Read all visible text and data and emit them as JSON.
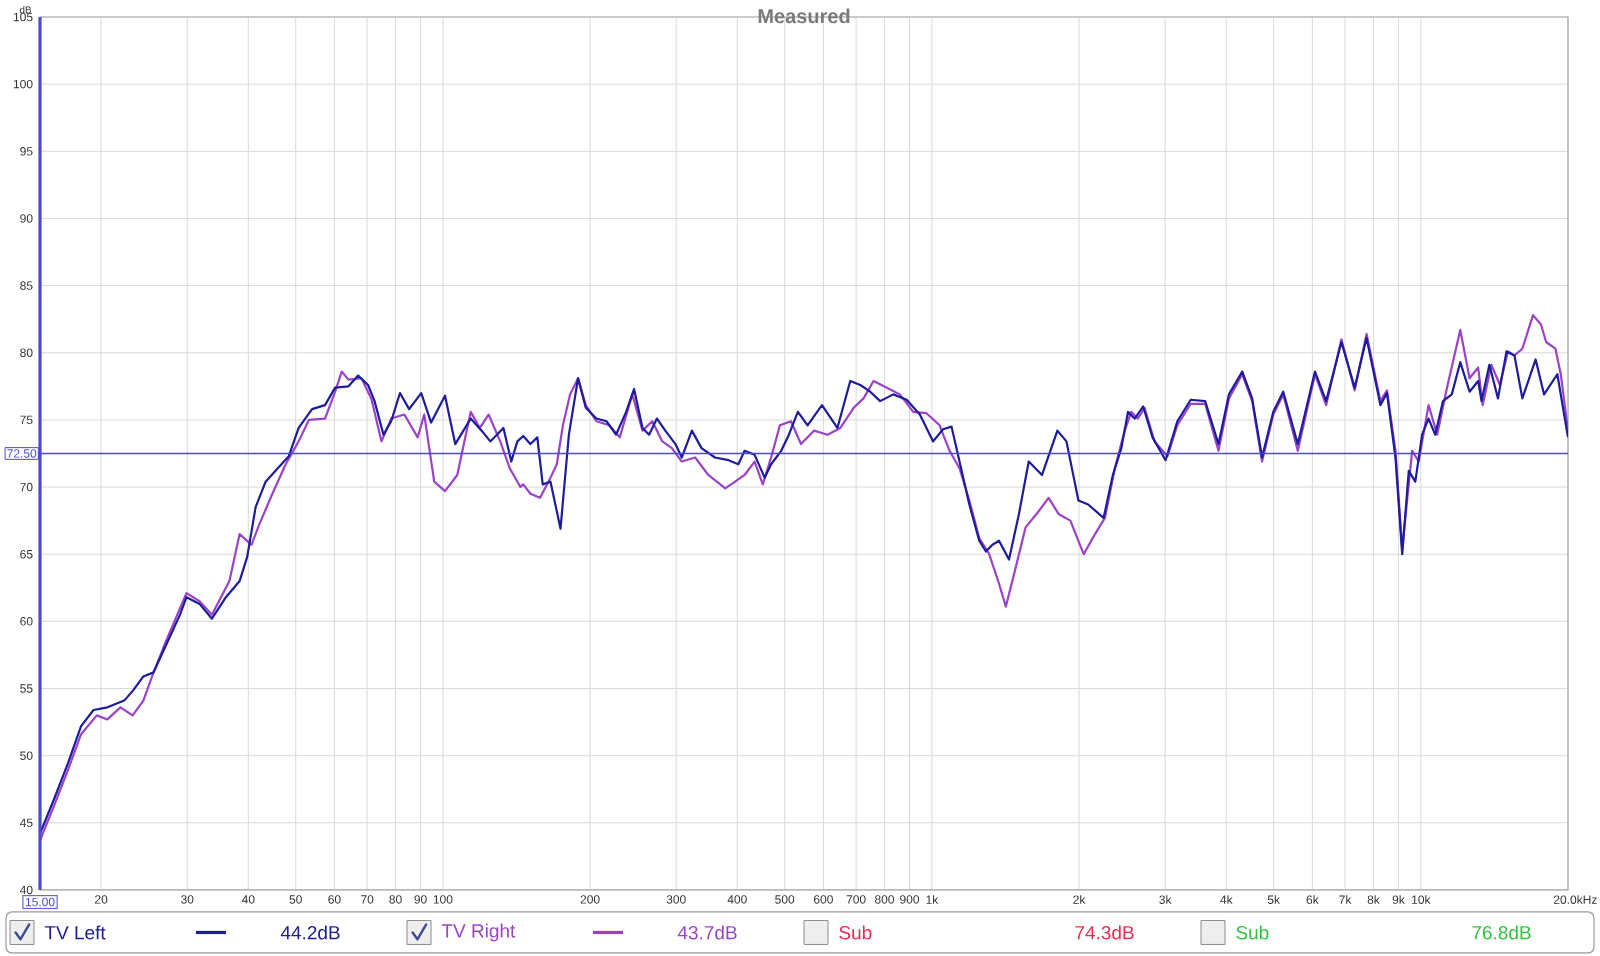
{
  "chart_data": {
    "type": "line",
    "title": "Measured",
    "xlabel": "Hz",
    "ylabel": "dB",
    "log": "x",
    "grid": true,
    "legend": "bottom",
    "xlim": [
      15,
      20000
    ],
    "ylim": [
      40,
      105
    ],
    "xticks": [
      {
        "value": 15,
        "label": "15.00"
      },
      20,
      30,
      40,
      50,
      60,
      70,
      80,
      90,
      100,
      200,
      300,
      400,
      500,
      600,
      700,
      800,
      900,
      {
        "value": 1000,
        "label": "1k"
      },
      {
        "value": 2000,
        "label": "2k"
      },
      {
        "value": 3000,
        "label": "3k"
      },
      {
        "value": 4000,
        "label": "4k"
      },
      {
        "value": 5000,
        "label": "5k"
      },
      {
        "value": 6000,
        "label": "6k"
      },
      {
        "value": 7000,
        "label": "7k"
      },
      {
        "value": 8000,
        "label": "8k"
      },
      {
        "value": 9000,
        "label": "9k"
      },
      {
        "value": 10000,
        "label": "10k"
      },
      {
        "value": 20000,
        "label": "20.0k"
      }
    ],
    "yticks": [
      40,
      45,
      50,
      55,
      60,
      65,
      70,
      75,
      80,
      85,
      90,
      95,
      100,
      105
    ],
    "series": [
      {
        "name": "TV Left",
        "color": "#1c1c9c",
        "x": [
          15,
          16.0,
          17.1,
          18.2,
          19.3,
          20.6,
          22.3,
          23.3,
          24.4,
          25.6,
          27.2,
          29.0,
          29.9,
          31.8,
          33.7,
          36.0,
          38.4,
          39.8,
          41.4,
          43.4,
          46.2,
          48.4,
          50.7,
          54.0,
          57.4,
          60.2,
          64.1,
          67.1,
          70.3,
          72.5,
          75.6,
          78.4,
          81.7,
          85.3,
          90.3,
          94.6,
          101,
          106,
          114,
          120,
          125,
          133,
          138,
          142,
          146,
          151,
          156,
          160,
          166,
          174,
          181,
          189,
          196,
          206,
          216,
          226,
          237,
          246,
          256,
          264,
          274,
          285,
          299,
          308,
          323,
          338,
          360,
          384,
          402,
          414,
          434,
          455,
          469,
          492,
          510,
          532,
          557,
          596,
          641,
          681,
          714,
          748,
          784,
          834,
          888,
          945,
          1006,
          1054,
          1097,
          1139,
          1193,
          1250,
          1290,
          1330,
          1372,
          1438,
          1507,
          1578,
          1680,
          1806,
          1885,
          1994,
          2088,
          2245,
          2345,
          2441,
          2518,
          2599,
          2705,
          2827,
          3006,
          3177,
          3384,
          3622,
          3856,
          4051,
          4313,
          4519,
          4734,
          4992,
          5231,
          5602,
          6075,
          6402,
          6880,
          7322,
          7745,
          8267,
          8526,
          8874,
          9160,
          9447,
          9743,
          10060,
          10370,
          10700,
          11100,
          11570,
          12040,
          12580,
          13100,
          13310,
          13810,
          14380,
          14970,
          15540,
          16130,
          17170,
          17870,
          19020,
          20000
        ],
        "values": [
          44.2,
          46.7,
          49.4,
          52.2,
          53.4,
          53.6,
          54.1,
          54.9,
          55.9,
          56.2,
          58.3,
          60.5,
          61.8,
          61.3,
          60.2,
          61.8,
          63.0,
          64.8,
          68.5,
          70.4,
          71.5,
          72.3,
          74.4,
          75.8,
          76.1,
          77.4,
          77.5,
          78.3,
          77.6,
          76.4,
          73.9,
          74.9,
          77.0,
          75.8,
          77.0,
          74.8,
          76.8,
          73.2,
          75.1,
          74.2,
          73.4,
          74.4,
          71.9,
          73.4,
          73.8,
          73.2,
          73.7,
          70.2,
          70.4,
          66.9,
          73.9,
          78.1,
          75.9,
          75.1,
          74.9,
          73.9,
          75.6,
          77.3,
          74.4,
          73.9,
          75.1,
          74.2,
          73.2,
          72.2,
          74.2,
          72.9,
          72.2,
          72.0,
          71.7,
          72.7,
          72.4,
          70.7,
          71.7,
          72.7,
          73.9,
          75.6,
          74.6,
          76.1,
          74.4,
          77.9,
          77.6,
          77.1,
          76.4,
          76.9,
          76.5,
          75.4,
          73.4,
          74.3,
          74.5,
          71.9,
          68.7,
          66.0,
          65.2,
          65.7,
          66.0,
          64.6,
          68.0,
          71.9,
          70.9,
          74.2,
          73.4,
          69.0,
          68.7,
          67.7,
          70.9,
          72.9,
          75.6,
          75.1,
          76.0,
          73.7,
          72.0,
          74.9,
          76.5,
          76.4,
          73.2,
          76.9,
          78.6,
          76.6,
          72.2,
          75.6,
          77.1,
          73.2,
          78.6,
          76.4,
          80.8,
          77.4,
          81.1,
          76.1,
          77.0,
          72.2,
          65.0,
          71.2,
          70.4,
          73.9,
          75.1,
          73.9,
          76.4,
          76.9,
          79.3,
          77.1,
          77.9,
          76.4,
          79.1,
          76.6,
          80.1,
          79.8,
          76.6,
          79.5,
          76.9,
          78.4,
          73.7
        ]
      },
      {
        "name": "TV Right",
        "color": "#9b42c9",
        "x": [
          15,
          16.0,
          17.1,
          18.2,
          19.6,
          20.6,
          21.9,
          23.2,
          24.4,
          25.6,
          27.2,
          29.9,
          31.8,
          33.7,
          36.6,
          38.4,
          40.6,
          42.1,
          44.8,
          47.7,
          50.7,
          53.2,
          57.4,
          60.2,
          62.1,
          64.1,
          68.2,
          71.5,
          74.9,
          78.4,
          83.4,
          88.8,
          91.6,
          96.0,
          101,
          107,
          114,
          119,
          124,
          131,
          137,
          144,
          146,
          151,
          158,
          166,
          171,
          176,
          182,
          189,
          196,
          206,
          219,
          230,
          244,
          256,
          268,
          281,
          294,
          308,
          328,
          349,
          378,
          396,
          414,
          434,
          451,
          469,
          489,
          515,
          540,
          574,
          612,
          650,
          692,
          725,
          760,
          809,
          860,
          916,
          975,
          1037,
          1087,
          1139,
          1193,
          1250,
          1310,
          1372,
          1417,
          1484,
          1555,
          1654,
          1733,
          1816,
          1920,
          2044,
          2156,
          2259,
          2367,
          2480,
          2557,
          2637,
          2722,
          2853,
          3034,
          3177,
          3384,
          3622,
          3856,
          4051,
          4313,
          4519,
          4734,
          4992,
          5231,
          5602,
          6075,
          6402,
          6880,
          7322,
          7745,
          8267,
          8526,
          8874,
          9160,
          9598,
          9899,
          10370,
          10800,
          11310,
          12040,
          12580,
          13100,
          13380,
          13940,
          14510,
          15070,
          15540,
          16130,
          16960,
          17610,
          18040,
          18850,
          19330,
          20000
        ],
        "values": [
          43.7,
          46.2,
          48.9,
          51.6,
          53.0,
          52.7,
          53.6,
          53.0,
          54.1,
          56.2,
          58.6,
          62.1,
          61.5,
          60.5,
          63.0,
          66.5,
          65.7,
          67.2,
          69.5,
          71.7,
          73.4,
          75.0,
          75.1,
          77.1,
          78.6,
          78.0,
          78.1,
          76.5,
          73.4,
          75.1,
          75.4,
          73.7,
          75.4,
          70.4,
          69.7,
          70.9,
          75.6,
          74.4,
          75.4,
          73.4,
          71.4,
          70.0,
          70.2,
          69.5,
          69.2,
          70.7,
          71.7,
          74.6,
          76.9,
          78.1,
          76.1,
          74.9,
          74.6,
          73.7,
          76.9,
          74.2,
          74.9,
          73.4,
          72.9,
          71.9,
          72.2,
          70.9,
          69.9,
          70.4,
          70.9,
          71.9,
          70.2,
          72.2,
          74.6,
          74.9,
          73.2,
          74.2,
          73.9,
          74.4,
          75.9,
          76.6,
          77.9,
          77.4,
          76.9,
          75.6,
          75.5,
          74.6,
          72.7,
          71.4,
          69.0,
          66.2,
          65.0,
          62.8,
          61.1,
          64.0,
          67.0,
          68.2,
          69.2,
          68.0,
          67.5,
          65.0,
          66.5,
          67.7,
          71.4,
          74.2,
          75.6,
          75.1,
          75.9,
          73.4,
          72.3,
          74.6,
          76.2,
          76.2,
          72.7,
          76.6,
          78.4,
          76.4,
          71.9,
          75.4,
          76.9,
          72.7,
          78.4,
          76.1,
          81.0,
          77.2,
          81.4,
          76.4,
          77.2,
          72.7,
          65.4,
          72.7,
          71.9,
          76.1,
          73.9,
          77.4,
          81.7,
          78.1,
          78.9,
          76.1,
          79.1,
          77.6,
          80.1,
          79.8,
          80.3,
          82.8,
          82.1,
          80.8,
          80.3,
          78.4,
          74.2
        ]
      }
    ],
    "ref_lines": [
      {
        "axis": "y",
        "value": 72.5,
        "label": "72.50",
        "color": "#4a4ad0"
      }
    ],
    "annotations": [
      "44.2dB",
      "43.7dB",
      "Sub",
      "74.3dB",
      "Sub",
      "76.8dB"
    ]
  }
}
